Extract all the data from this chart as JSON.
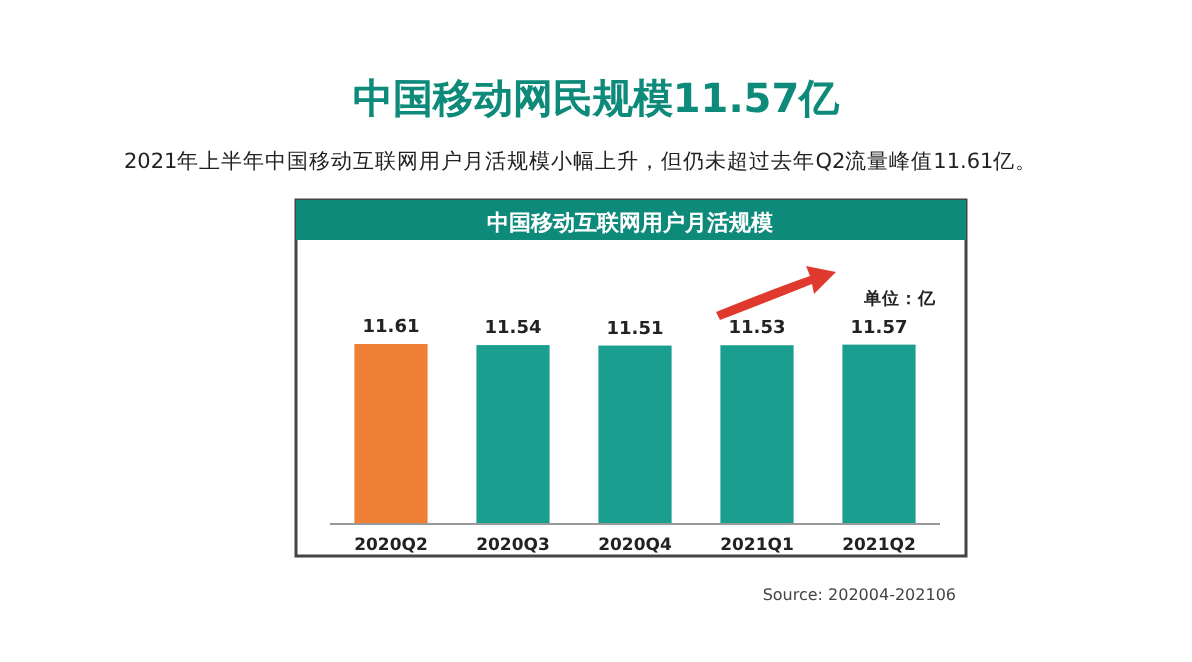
{
  "chart_data": {
    "type": "bar",
    "title": "中国移动网民规模11.57亿",
    "subtitle": "2021年上半年中国移动互联网用户月活规模小幅上升，但仍未超过去年Q2流量峰值11.61亿。",
    "annotations": [
      "中国移动互联网用户月活规模",
      "单位：亿",
      "Source: 202004-202106"
    ],
    "categories": [
      "2020Q2",
      "2020Q3",
      "2020Q4",
      "2021Q1",
      "2021Q2"
    ],
    "values": [
      11.61,
      11.54,
      11.51,
      11.53,
      11.57
    ],
    "colors": [
      "#f07f36",
      "#1a9e8f",
      "#1a9e8f",
      "#1a9e8f",
      "#1a9e8f"
    ],
    "data_labels": true
  }
}
